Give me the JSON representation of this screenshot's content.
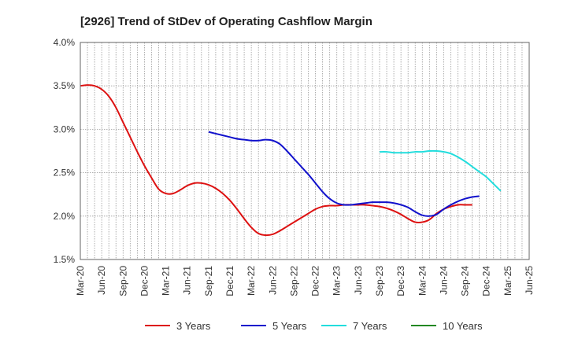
{
  "chart_data": {
    "type": "line",
    "title": "[2926]  Trend of StDev of Operating Cashflow Margin",
    "xlabel": "",
    "ylabel": "",
    "ylim": [
      1.5,
      4.0
    ],
    "y_ticks": [
      1.5,
      2.0,
      2.5,
      3.0,
      3.5,
      4.0
    ],
    "y_tick_labels": [
      "1.5%",
      "2.0%",
      "2.5%",
      "3.0%",
      "3.5%",
      "4.0%"
    ],
    "x_ticks": [
      "Mar-20",
      "Jun-20",
      "Sep-20",
      "Dec-20",
      "Mar-21",
      "Jun-21",
      "Sep-21",
      "Dec-21",
      "Mar-22",
      "Jun-22",
      "Sep-22",
      "Dec-22",
      "Mar-23",
      "Jun-23",
      "Sep-23",
      "Dec-23",
      "Mar-24",
      "Jun-24",
      "Sep-24",
      "Dec-24",
      "Mar-25",
      "Jun-25"
    ],
    "grid": true,
    "legend_position": "bottom",
    "series": [
      {
        "name": "3 Years",
        "color": "#dd1111",
        "start": "Mar-20",
        "values": [
          3.5,
          3.51,
          3.5,
          3.46,
          3.38,
          3.25,
          3.08,
          2.91,
          2.74,
          2.58,
          2.44,
          2.31,
          2.26,
          2.26,
          2.3,
          2.35,
          2.38,
          2.38,
          2.36,
          2.32,
          2.26,
          2.18,
          2.08,
          1.97,
          1.87,
          1.8,
          1.78,
          1.79,
          1.83,
          1.88,
          1.93,
          1.98,
          2.03,
          2.08,
          2.11,
          2.12,
          2.12,
          2.13,
          2.13,
          2.13,
          2.13,
          2.12,
          2.11,
          2.09,
          2.06,
          2.02,
          1.97,
          1.93,
          1.93,
          1.96,
          2.03,
          2.08,
          2.11,
          2.13,
          2.13,
          2.13
        ]
      },
      {
        "name": "5 Years",
        "color": "#1111cc",
        "start": "Sep-21",
        "values": [
          2.97,
          2.95,
          2.93,
          2.91,
          2.89,
          2.88,
          2.87,
          2.87,
          2.88,
          2.87,
          2.83,
          2.75,
          2.66,
          2.57,
          2.48,
          2.38,
          2.28,
          2.2,
          2.15,
          2.13,
          2.13,
          2.14,
          2.15,
          2.16,
          2.16,
          2.16,
          2.15,
          2.13,
          2.1,
          2.05,
          2.01,
          2.0,
          2.02,
          2.08,
          2.13,
          2.17,
          2.2,
          2.22,
          2.23
        ]
      },
      {
        "name": "7 Years",
        "color": "#22dddd",
        "start": "Sep-23",
        "values": [
          2.74,
          2.74,
          2.73,
          2.73,
          2.73,
          2.74,
          2.74,
          2.75,
          2.75,
          2.74,
          2.72,
          2.68,
          2.63,
          2.57,
          2.51,
          2.45,
          2.37,
          2.29
        ]
      },
      {
        "name": "10 Years",
        "color": "#228822",
        "start": "Mar-25",
        "values": []
      }
    ]
  }
}
